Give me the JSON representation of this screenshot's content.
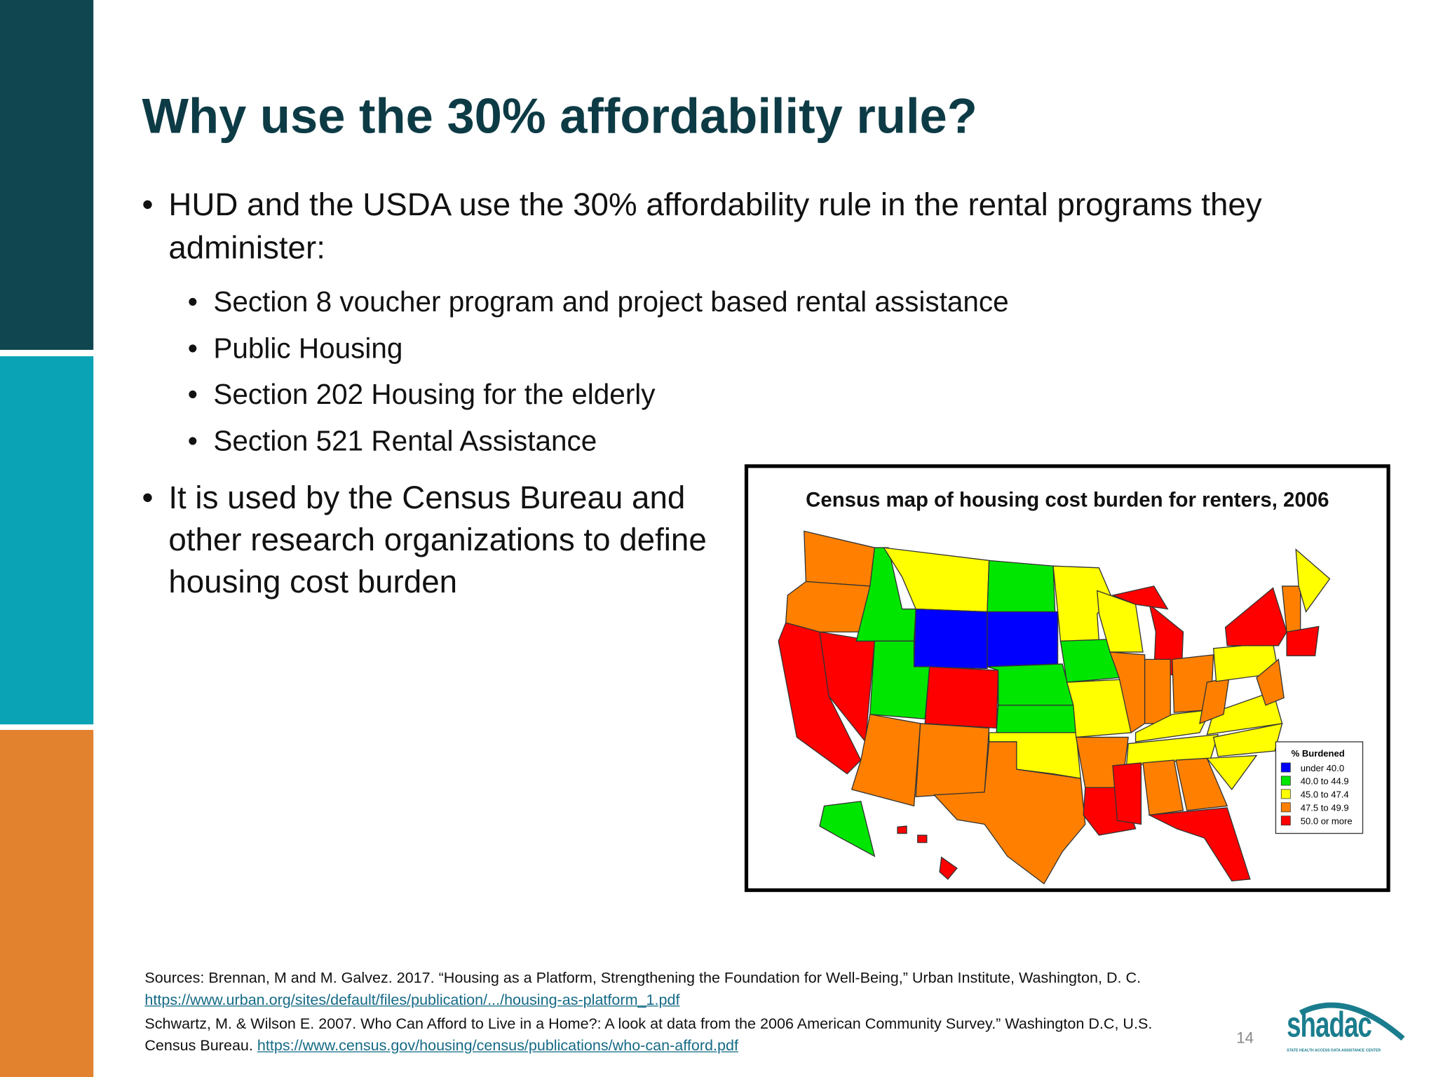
{
  "title": "Why use the 30% affordability rule?",
  "bullets": [
    {
      "text": "HUD and the USDA use the 30% affordability rule in the rental programs they administer:",
      "sub_bullets": [
        "Section 8 voucher program and project based rental assistance",
        "Public Housing",
        "Section 202 Housing for the elderly",
        "Section 521 Rental Assistance"
      ]
    },
    {
      "text": "It is used by the Census Bureau and other research organizations to define housing cost burden",
      "sub_bullets": []
    }
  ],
  "map": {
    "title": "Census map of housing cost burden for renters, 2006",
    "legend_title": "% Burdened",
    "legend": [
      {
        "label": "under 40.0",
        "color": "#0000ff"
      },
      {
        "label": "40.0 to 44.9",
        "color": "#00e600"
      },
      {
        "label": "45.0 to 47.4",
        "color": "#ffff00"
      },
      {
        "label": "47.5 to 49.9",
        "color": "#ff8000"
      },
      {
        "label": "50.0 or more",
        "color": "#ff0000"
      }
    ]
  },
  "sources": [
    {
      "text": "Sources: Brennan, M  and M. Galvez. 2017. “Housing as a Platform, Strengthening the Foundation for Well-Being,” Urban Institute, Washington, D. C.",
      "url": "https://www.urban.org/sites/default/files/publication/.../housing-as-platform_1.pdf"
    },
    {
      "text": "Schwartz, M. & Wilson E. 2007. Who Can Afford to Live in a Home?: A look at data from the 2006 American Community Survey.” Washington D.C, U.S. Census Bureau.",
      "url": "https://www.census.gov/housing/census/publications/who-can-afford.pdf"
    }
  ],
  "page_number": "14",
  "logo": {
    "name": "shadac",
    "tagline": "STATE HEALTH ACCESS DATA ASSISTANCE CENTER"
  }
}
